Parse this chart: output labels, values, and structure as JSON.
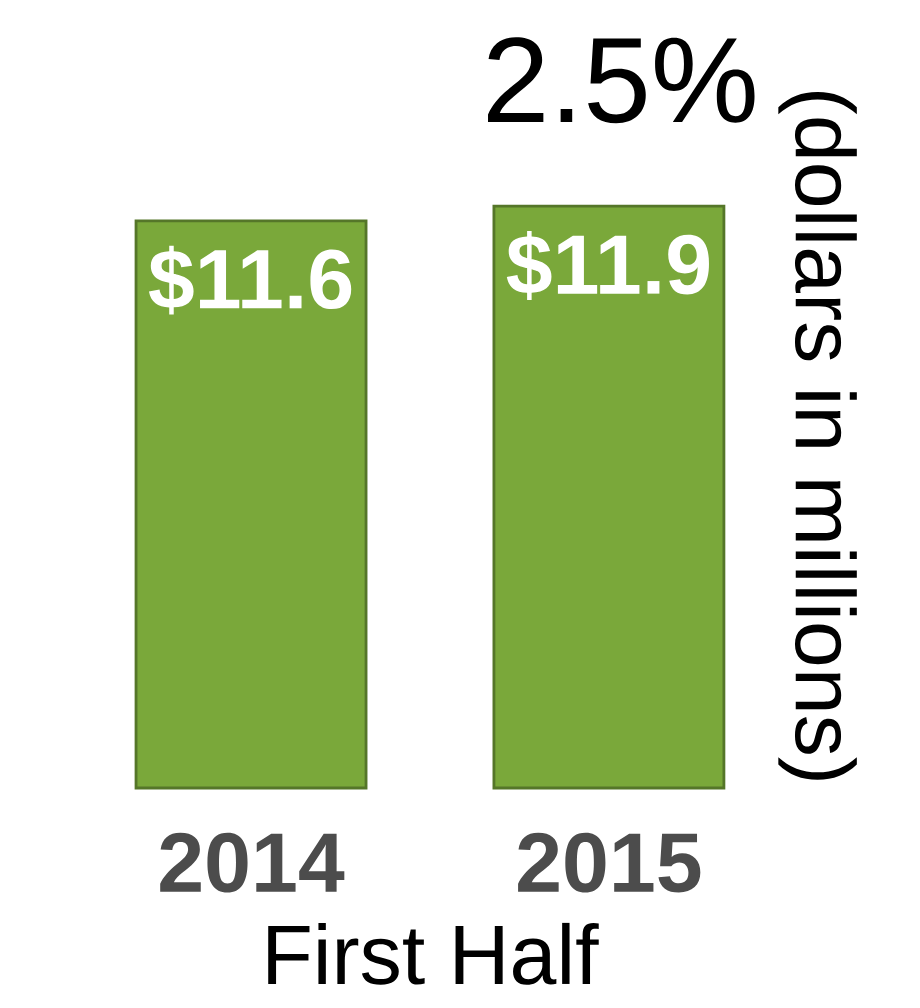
{
  "chart_data": {
    "type": "bar",
    "xlabel": "First Half",
    "ylabel": "(dollars in millions)",
    "categories": [
      "2014",
      "2015"
    ],
    "values": [
      11.6,
      11.9
    ],
    "value_labels": [
      "$11.6",
      "$11.9"
    ],
    "color": "#7aa83a",
    "annotations": [
      "2.5%"
    ]
  }
}
